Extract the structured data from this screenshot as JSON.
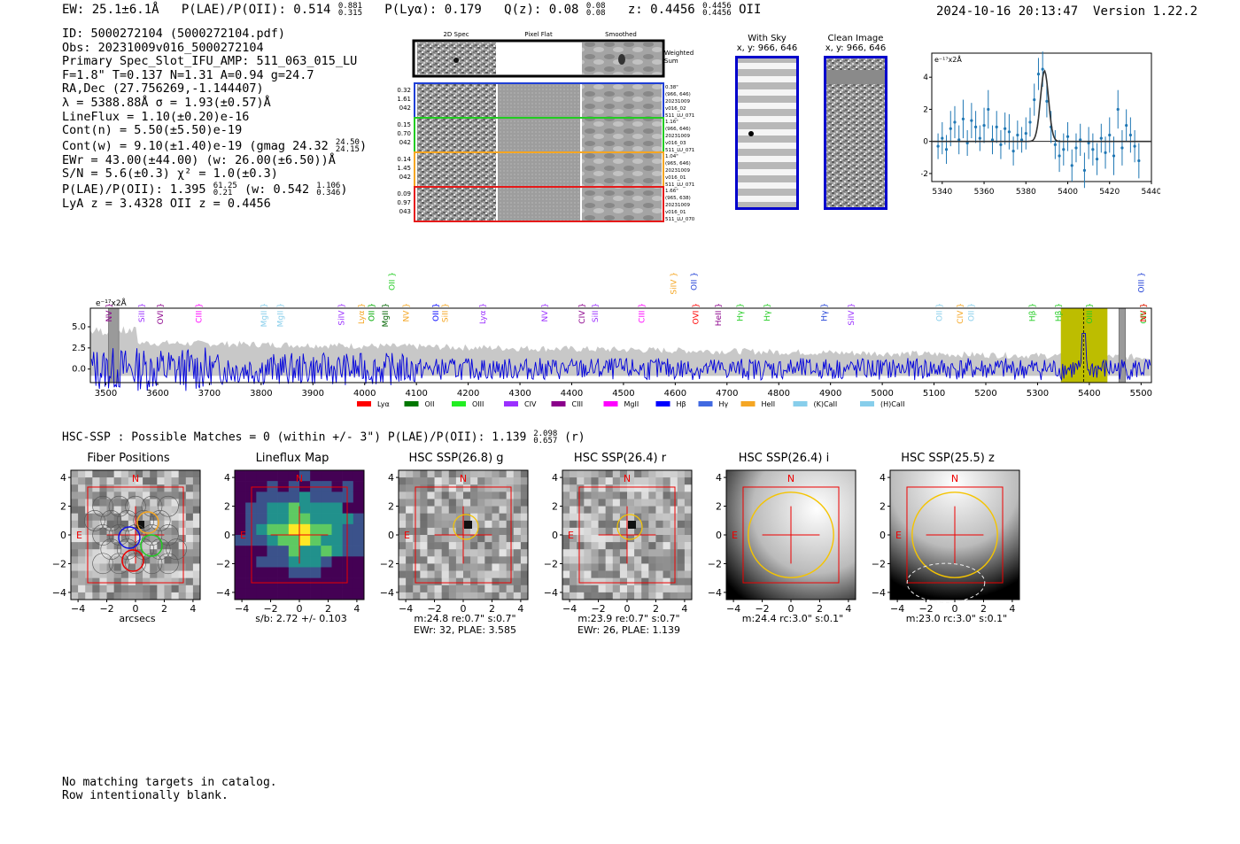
{
  "header": {
    "ew": "EW: 25.1±6.1Å",
    "plae_label": "P(LAE)/P(OII): 0.514",
    "plae_hi": "0.881",
    "plae_lo": "0.315",
    "plya": "P(Lyα): 0.179",
    "qz_label": "Q(z): 0.08",
    "qz_hi": "0.08",
    "qz_lo": "0.08",
    "z_label": "z: 0.4456",
    "z_hi": "0.4456",
    "z_lo": "0.4456",
    "z_line": "OII",
    "timestamp": "2024-10-16 20:13:47",
    "version": "Version 1.22.2"
  },
  "info": {
    "id": "ID: 5000272104 (5000272104.pdf)",
    "obs": "Obs: 20231009v016_5000272104",
    "primary": "Primary Spec_Slot_IFU_AMP: 511_063_015_LU",
    "fit": "F=1.8\"  T=0.137  N=1.31  A=0.94  g=24.7",
    "radec": "RA,Dec (27.756269,-1.144407)",
    "lambda": "λ = 5388.88Å  σ = 1.93(±0.57)Å",
    "lineflux": "LineFlux = 1.10(±0.20)e-16",
    "contn": "Cont(n) = 5.50(±5.50)e-19",
    "contw": "Cont(w) = 9.10(±1.40)e-19 (gmag 24.32",
    "contw_hi": "24.50",
    "contw_lo": "24.15",
    "ewr": "EWr = 43.00(±44.00) (w: 26.00(±6.50))Å",
    "sn": "S/N = 5.6(±0.3)  χ² = 1.0(±0.3)",
    "plae": "P(LAE)/P(OII): 1.395",
    "plae_hi": "61.25",
    "plae_lo": "0.21",
    "plae_w": "(w: 0.542",
    "plae_w_hi": "1.106",
    "plae_w_lo": "0.346",
    "z": "LyA z = 3.4328   OII z = 0.4456"
  },
  "spec2d": {
    "col_labels": [
      "2D Spec",
      "Pixel Flat",
      "Smoothed"
    ],
    "weighted": "Weighted Sum",
    "rows": [
      {
        "left": [
          "0.32",
          "1.61",
          "042"
        ],
        "right": [
          "0.38\"",
          "(966, 646)",
          "20231009",
          "v016_02",
          "511_LU_071"
        ],
        "color": "#1f3fd6"
      },
      {
        "left": [
          "0.15",
          "0.70",
          "042"
        ],
        "right": [
          "1.16\"",
          "(966, 646)",
          "20231009",
          "v016_03",
          "511_LU_071"
        ],
        "color": "#22cc22"
      },
      {
        "left": [
          "0.14",
          "1.45",
          "042"
        ],
        "right": [
          "1.04\"",
          "(965, 646)",
          "20231009",
          "v016_01",
          "511_LU_071"
        ],
        "color": "#f5a623"
      },
      {
        "left": [
          "0.09",
          "0.97",
          "043"
        ],
        "right": [
          "1.66\"",
          "(965, 638)",
          "20231009",
          "v016_01",
          "511_LU_070"
        ],
        "color": "#e61919"
      }
    ]
  },
  "withsky": {
    "title": "With Sky",
    "coords": "x, y: 966, 646"
  },
  "clean": {
    "title": "Clean Image",
    "coords": "x, y: 966, 646"
  },
  "zoom_chart_data": {
    "type": "scatter",
    "ylabel": "e⁻¹⁷x2Å",
    "xlim": [
      5335,
      5440
    ],
    "ylim": [
      -2.5,
      5.5
    ],
    "xticks": [
      5340,
      5360,
      5380,
      5400,
      5420,
      5440
    ],
    "yticks": [
      -2,
      0,
      2,
      4
    ],
    "points": [
      [
        5338,
        -0.3,
        0.8
      ],
      [
        5340,
        0.2,
        1.0
      ],
      [
        5342,
        -0.5,
        0.9
      ],
      [
        5344,
        0.8,
        1.1
      ],
      [
        5346,
        1.2,
        1.0
      ],
      [
        5348,
        0.1,
        0.9
      ],
      [
        5350,
        1.4,
        1.2
      ],
      [
        5352,
        -0.1,
        0.8
      ],
      [
        5354,
        1.3,
        1.1
      ],
      [
        5356,
        0.9,
        1.0
      ],
      [
        5358,
        0.2,
        0.8
      ],
      [
        5360,
        1.0,
        1.1
      ],
      [
        5362,
        2.0,
        1.2
      ],
      [
        5364,
        0.1,
        0.9
      ],
      [
        5366,
        0.9,
        1.0
      ],
      [
        5368,
        -0.2,
        0.9
      ],
      [
        5370,
        0.8,
        1.0
      ],
      [
        5372,
        0.6,
        1.1
      ],
      [
        5374,
        -0.6,
        0.9
      ],
      [
        5376,
        0.4,
        0.9
      ],
      [
        5378,
        0.1,
        0.8
      ],
      [
        5380,
        0.5,
        1.0
      ],
      [
        5382,
        1.2,
        0.9
      ],
      [
        5384,
        2.6,
        1.0
      ],
      [
        5386,
        4.2,
        1.0
      ],
      [
        5388,
        4.5,
        1.1
      ],
      [
        5390,
        2.5,
        1.0
      ],
      [
        5392,
        0.9,
        1.0
      ],
      [
        5394,
        -0.2,
        0.9
      ],
      [
        5396,
        -0.9,
        1.0
      ],
      [
        5398,
        -0.5,
        1.0
      ],
      [
        5400,
        0.3,
        0.9
      ],
      [
        5402,
        -1.5,
        1.0
      ],
      [
        5404,
        -0.4,
        0.9
      ],
      [
        5406,
        0.1,
        1.0
      ],
      [
        5408,
        -1.8,
        1.1
      ],
      [
        5410,
        -0.1,
        1.0
      ],
      [
        5412,
        -0.5,
        1.0
      ],
      [
        5414,
        -1.1,
        1.0
      ],
      [
        5416,
        0.2,
        0.9
      ],
      [
        5418,
        -0.7,
        1.0
      ],
      [
        5420,
        0.4,
        1.1
      ],
      [
        5422,
        -0.9,
        1.2
      ],
      [
        5424,
        2.0,
        1.2
      ],
      [
        5426,
        -0.4,
        1.1
      ],
      [
        5428,
        1.0,
        1.0
      ],
      [
        5430,
        0.4,
        1.1
      ],
      [
        5432,
        -0.3,
        1.0
      ],
      [
        5434,
        -1.2,
        1.1
      ]
    ],
    "fit": {
      "center": 5388.88,
      "sigma": 1.93,
      "amp": 4.4
    }
  },
  "full_chart_data": {
    "type": "line",
    "ylabel": "e⁻¹⁷x2Å",
    "xlim": [
      3470,
      5520
    ],
    "ylim": [
      -1.6,
      7.2
    ],
    "xticks": [
      3500,
      3600,
      3700,
      3800,
      3900,
      4000,
      4100,
      4200,
      4300,
      4400,
      4500,
      4600,
      4700,
      4800,
      4900,
      5000,
      5100,
      5200,
      5300,
      5400,
      5500
    ],
    "yticks": [
      0.0,
      2.5,
      5.0
    ],
    "highlight_band": [
      5345,
      5435
    ],
    "emission_center": 5388.88,
    "line_labels": [
      {
        "x": 3506,
        "label": "NV",
        "color": "#8b008b",
        "row": 0
      },
      {
        "x": 3569,
        "label": "SiII",
        "color": "#9b30ff",
        "row": 0
      },
      {
        "x": 3605,
        "label": "OVI",
        "color": "#8b008b",
        "row": 0
      },
      {
        "x": 3680,
        "label": "CIII",
        "color": "#ff00ff",
        "row": 0
      },
      {
        "x": 3805,
        "label": "MgII",
        "color": "#87ceeb",
        "row": 0
      },
      {
        "x": 3837,
        "label": "MgII",
        "color": "#87ceeb",
        "row": 0
      },
      {
        "x": 3955,
        "label": "SiIV",
        "color": "#9b30ff",
        "row": 0
      },
      {
        "x": 3994,
        "label": "Lyα",
        "color": "#f5a623",
        "row": 0
      },
      {
        "x": 4013,
        "label": "OII",
        "color": "#00aa00",
        "row": 0
      },
      {
        "x": 4040,
        "label": "MgII",
        "color": "#006400",
        "row": 0
      },
      {
        "x": 4080,
        "label": "NV",
        "color": "#f5a623",
        "row": 0
      },
      {
        "x": 4137,
        "label": "OII",
        "color": "#0000ff",
        "row": 0
      },
      {
        "x": 4155,
        "label": "SiII",
        "color": "#f5a623",
        "row": 0
      },
      {
        "x": 4228,
        "label": "Lyα",
        "color": "#9b30ff",
        "row": 0
      },
      {
        "x": 4348,
        "label": "NV",
        "color": "#9b30ff",
        "row": 0
      },
      {
        "x": 4420,
        "label": "CIV",
        "color": "#8b008b",
        "row": 0
      },
      {
        "x": 4445,
        "label": "SiII",
        "color": "#9b30ff",
        "row": 0
      },
      {
        "x": 4535,
        "label": "CIII",
        "color": "#ff00ff",
        "row": 0
      },
      {
        "x": 4640,
        "label": "OVI",
        "color": "#ff0000",
        "row": 0
      },
      {
        "x": 4683,
        "label": "HeII",
        "color": "#8b008b",
        "row": 0
      },
      {
        "x": 4725,
        "label": "Hγ",
        "color": "#22cc22",
        "row": 0
      },
      {
        "x": 4777,
        "label": "Hγ",
        "color": "#22cc22",
        "row": 0
      },
      {
        "x": 4888,
        "label": "Hγ",
        "color": "#1f3fd6",
        "row": 0
      },
      {
        "x": 4940,
        "label": "SiIV",
        "color": "#9b30ff",
        "row": 0
      },
      {
        "x": 5110,
        "label": "OII",
        "color": "#87ceeb",
        "row": 0
      },
      {
        "x": 5150,
        "label": "CIV",
        "color": "#f5a623",
        "row": 0
      },
      {
        "x": 5172,
        "label": "OII",
        "color": "#87ceeb",
        "row": 0
      },
      {
        "x": 5290,
        "label": "Hβ",
        "color": "#22cc22",
        "row": 0
      },
      {
        "x": 5340,
        "label": "Hβ",
        "color": "#22cc22",
        "row": 0
      },
      {
        "x": 5400,
        "label": "OIII",
        "color": "#22cc22",
        "row": 0
      },
      {
        "x": 5506,
        "label": "OIII",
        "color": "#22cc22",
        "row": 0
      },
      {
        "x": 5560,
        "label": "NV",
        "color": "#ff0000",
        "row": 0
      },
      {
        "x": 4053,
        "label": "OII",
        "color": "#22cc22",
        "row": 1
      },
      {
        "x": 4597,
        "label": "SiIV",
        "color": "#f5a623",
        "row": 1
      },
      {
        "x": 4636,
        "label": "OII",
        "color": "#1f3fd6",
        "row": 1
      },
      {
        "x": 5500,
        "label": "OIII",
        "color": "#1f3fd6",
        "row": 1
      }
    ],
    "legend": [
      {
        "label": "Lyα",
        "color": "#ff0000"
      },
      {
        "label": "OII",
        "color": "#007700"
      },
      {
        "label": "OIII",
        "color": "#22ee22"
      },
      {
        "label": "CIV",
        "color": "#9b30ff"
      },
      {
        "label": "CIII",
        "color": "#8b008b"
      },
      {
        "label": "MgII",
        "color": "#ff00ff"
      },
      {
        "label": "Hβ",
        "color": "#0000ff"
      },
      {
        "label": "Hγ",
        "color": "#4169e1"
      },
      {
        "label": "HeII",
        "color": "#f5a623"
      },
      {
        "label": "(K)CaII",
        "color": "#87ceeb"
      },
      {
        "label": "(H)CaII",
        "color": "#87ceeb"
      }
    ]
  },
  "hsc": {
    "summary": "HSC-SSP : Possible Matches = 0 (within +/- 3\")  P(LAE)/P(OII): 1.139",
    "summary_hi": "2.098",
    "summary_lo": "0.657",
    "summary_band": "(r)",
    "ticks": [
      "−4",
      "−2",
      "0",
      "2",
      "4"
    ],
    "north": "N",
    "east": "E",
    "panels": [
      {
        "title": "Fiber Positions",
        "caption1": "arcsecs",
        "caption2": "",
        "kind": "fiber"
      },
      {
        "title": "Lineflux Map",
        "caption1": "s/b: 2.72 +/- 0.103",
        "caption2": "",
        "kind": "flux"
      },
      {
        "title": "HSC SSP(26.8) g",
        "caption1": "m:24.8  re:0.7\"  s:0.7\"",
        "caption2": "EWr: 32, PLAE: 3.585",
        "kind": "noise"
      },
      {
        "title": "HSC SSP(26.4) r",
        "caption1": "m:23.9  re:0.7\"  s:0.7\"",
        "caption2": "EWr: 26, PLAE: 1.139",
        "kind": "noise"
      },
      {
        "title": "HSC SSP(26.4) i",
        "caption1": "m:24.4 rc:3.0\"  s:0.1\"",
        "caption2": "",
        "kind": "smoothi"
      },
      {
        "title": "HSC SSP(25.5) z",
        "caption1": "m:23.0 rc:3.0\"  s:0.1\"",
        "caption2": "",
        "kind": "smoothz"
      }
    ]
  },
  "footer": {
    "line1": "No matching targets in catalog.",
    "line2": "Row intentionally blank."
  }
}
